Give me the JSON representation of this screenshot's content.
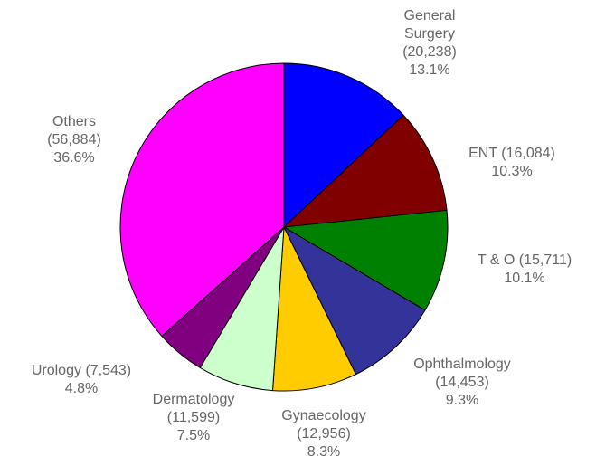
{
  "chart_data": {
    "type": "pie",
    "categories": [
      "General Surgery",
      "ENT",
      "T & O",
      "Ophthalmology",
      "Gynaecology",
      "Dermatology",
      "Urology",
      "Others"
    ],
    "values": [
      20238,
      16084,
      15711,
      14453,
      12956,
      11599,
      7543,
      56884
    ],
    "value_labels": [
      "(20,238)",
      "(16,084)",
      "(15,711)",
      "(14,453)",
      "(12,956)",
      "(11,599)",
      "(7,543)",
      "(56,884)"
    ],
    "percents": [
      13.1,
      10.3,
      10.1,
      9.3,
      8.3,
      7.5,
      4.8,
      36.6
    ],
    "percent_labels": [
      "13.1%",
      "10.3%",
      "10.1%",
      "9.3%",
      "8.3%",
      "7.5%",
      "4.8%",
      "36.6%"
    ],
    "colors": [
      "#0000ff",
      "#800000",
      "#008000",
      "#333399",
      "#ffcc00",
      "#ccffcc",
      "#800080",
      "#ff00ff"
    ]
  }
}
